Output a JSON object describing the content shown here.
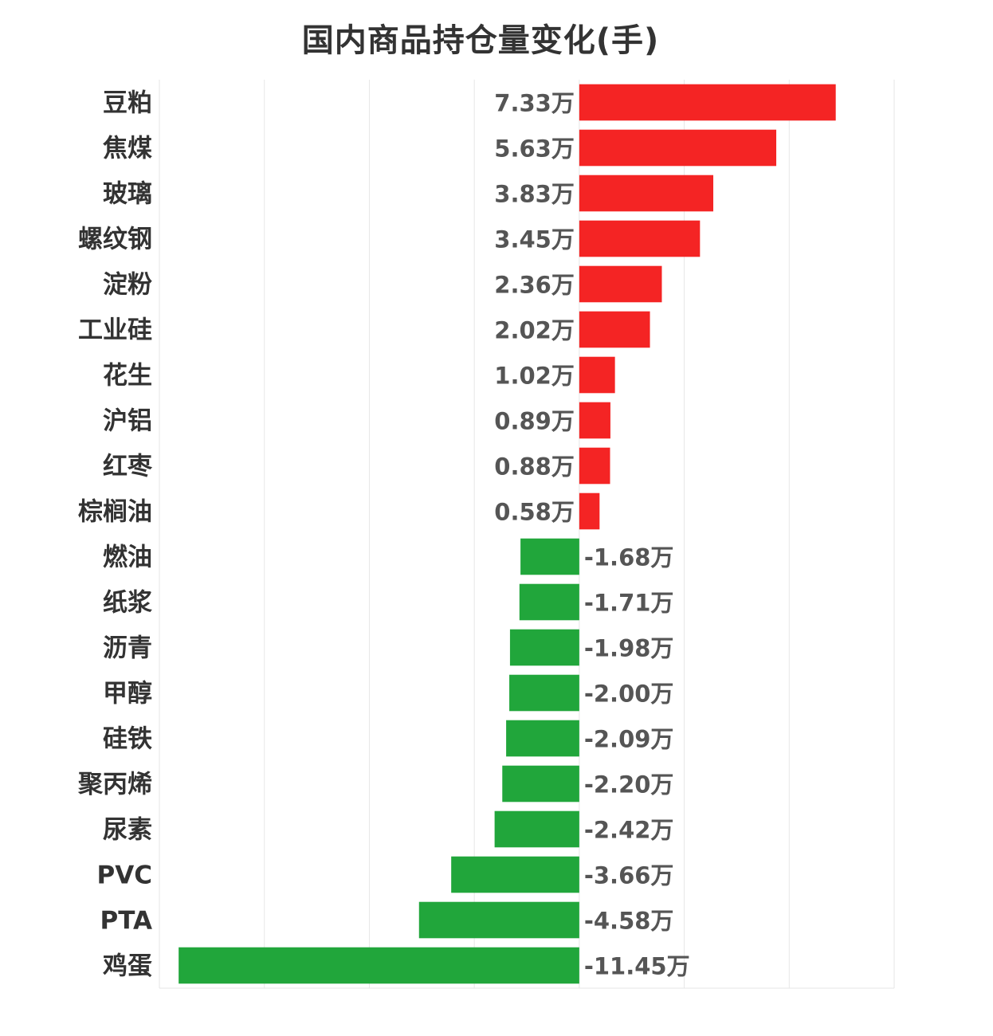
{
  "chart_data": {
    "type": "bar",
    "orientation": "horizontal",
    "title": "国内商品持仓量变化(手)",
    "unit_suffix": "万",
    "categories": [
      "豆粕",
      "焦煤",
      "玻璃",
      "螺纹钢",
      "淀粉",
      "工业硅",
      "花生",
      "沪铝",
      "红枣",
      "棕榈油",
      "燃油",
      "纸浆",
      "沥青",
      "甲醇",
      "硅铁",
      "聚丙烯",
      "尿素",
      "PVC",
      "PTA",
      "鸡蛋"
    ],
    "values": [
      7.33,
      5.63,
      3.83,
      3.45,
      2.36,
      2.02,
      1.02,
      0.89,
      0.88,
      0.58,
      -1.68,
      -1.71,
      -1.98,
      -2.0,
      -2.09,
      -2.2,
      -2.42,
      -3.66,
      -4.58,
      -11.45
    ],
    "value_labels": [
      "7.33万",
      "5.63万",
      "3.83万",
      "3.45万",
      "2.36万",
      "2.02万",
      "1.02万",
      "0.89万",
      "0.88万",
      "0.58万",
      "-1.68万",
      "-1.71万",
      "-1.98万",
      "-2.00万",
      "-2.09万",
      "-2.20万",
      "-2.42万",
      "-3.66万",
      "-4.58万",
      "-11.45万"
    ],
    "xlim": [
      -12,
      9
    ],
    "grid": true,
    "colors": {
      "positive": "#f42424",
      "negative": "#21a63b",
      "grid": "#e6e6e6",
      "label": "#333333",
      "value_label": "#555555"
    }
  }
}
